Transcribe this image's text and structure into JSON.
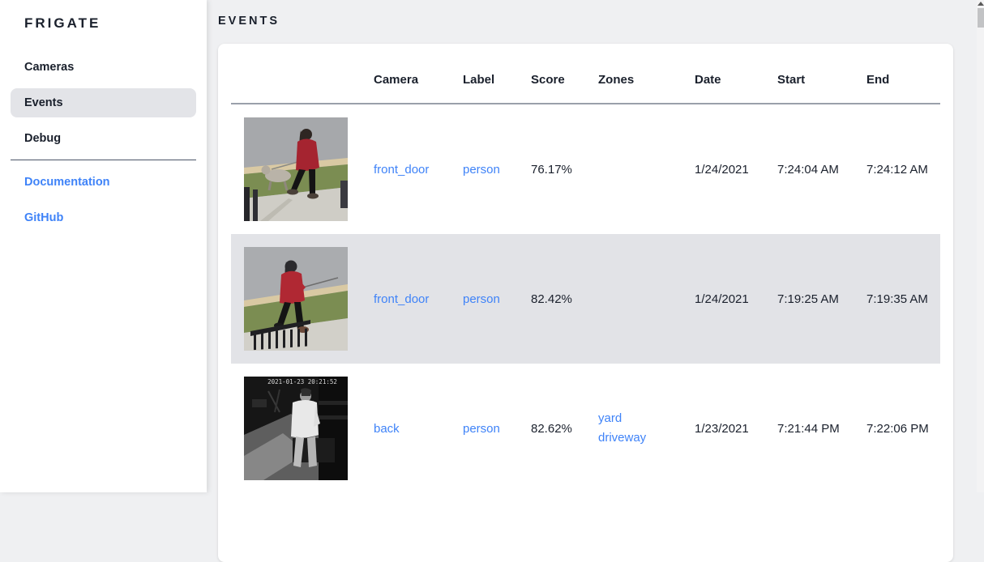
{
  "sidebar": {
    "logo": "FRIGATE",
    "items": [
      {
        "label": "Cameras",
        "selected": false
      },
      {
        "label": "Events",
        "selected": true
      },
      {
        "label": "Debug",
        "selected": false
      }
    ],
    "links": [
      {
        "label": "Documentation"
      },
      {
        "label": "GitHub"
      }
    ]
  },
  "page": {
    "title": "EVENTS"
  },
  "table": {
    "columns": [
      "",
      "Camera",
      "Label",
      "Score",
      "Zones",
      "Date",
      "Start",
      "End"
    ],
    "rows": [
      {
        "thumb": "daylight-dog-walk",
        "thumb_description": "person in red coat walking a dog on sidewalk",
        "camera": "front_door",
        "label": "person",
        "score": "76.17%",
        "zones": [],
        "date": "1/24/2021",
        "start": "7:24:04 AM",
        "end": "7:24:12 AM",
        "selected": false
      },
      {
        "thumb": "daylight-walk",
        "thumb_description": "person in red hooded coat walking past railing",
        "camera": "front_door",
        "label": "person",
        "score": "82.42%",
        "zones": [],
        "date": "1/24/2021",
        "start": "7:19:25 AM",
        "end": "7:19:35 AM",
        "selected": true
      },
      {
        "thumb": "night-person",
        "thumb_description": "infrared night view of person in white shirt by truck",
        "thumb_overlay": "2021-01-23 20:21:52",
        "camera": "back",
        "label": "person",
        "score": "82.62%",
        "zones": [
          "yard",
          "driveway"
        ],
        "date": "1/23/2021",
        "start": "7:21:44 PM",
        "end": "7:22:06 PM",
        "selected": false
      }
    ]
  },
  "icons": {
    "scrollbar_up_arrow": "▲"
  },
  "colors": {
    "accent_link": "#3f83f8",
    "text_dark": "#1a202c",
    "row_highlight": "#e2e3e7",
    "nav_selected": "#e3e4e8",
    "main_background": "#eff0f2",
    "card_background": "#ffffff",
    "header_underline": "#9aa0aa"
  }
}
